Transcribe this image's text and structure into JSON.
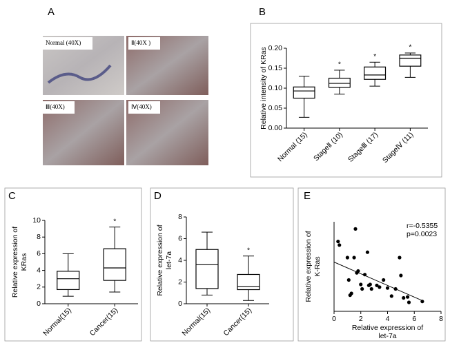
{
  "panel_a": {
    "panel_label": "A",
    "images": [
      {
        "label": "Normal (40X)"
      },
      {
        "label": "Ⅱ(40X )"
      },
      {
        "label": "Ⅲ(40X)"
      },
      {
        "label": "Ⅳ(40X)"
      }
    ]
  },
  "chart_data": [
    {
      "type": "box",
      "panel_label": "B",
      "ylabel": [
        "Relative intensity of KRas"
      ],
      "categories": [
        "Normal (15)",
        "StageⅡ (10)",
        "StageⅢ (17)",
        "StageⅣ (11)"
      ],
      "boxes": [
        {
          "min": 0.027,
          "q1": 0.075,
          "median": 0.093,
          "q3": 0.103,
          "max": 0.13
        },
        {
          "min": 0.085,
          "q1": 0.102,
          "median": 0.112,
          "q3": 0.125,
          "max": 0.145
        },
        {
          "min": 0.105,
          "q1": 0.122,
          "median": 0.133,
          "q3": 0.153,
          "max": 0.165
        },
        {
          "min": 0.127,
          "q1": 0.155,
          "median": 0.175,
          "q3": 0.183,
          "max": 0.188
        }
      ],
      "annotations": [
        null,
        "*",
        "*",
        "*"
      ],
      "ylim": [
        0,
        0.2
      ],
      "yticks": [
        {
          "value": 0,
          "label": "0.00"
        },
        {
          "value": 0.05,
          "label": "0.05"
        },
        {
          "value": 0.1,
          "label": "0.10"
        },
        {
          "value": 0.15,
          "label": "0.15"
        },
        {
          "value": 0.2,
          "label": "0.20"
        }
      ]
    },
    {
      "type": "box",
      "panel_label": "C",
      "ylabel": [
        "Relative expression of",
        "KRas"
      ],
      "categories": [
        "Normal(15)",
        "Cancer(15)"
      ],
      "boxes": [
        {
          "min": 0.9,
          "q1": 1.7,
          "median": 3.0,
          "q3": 3.9,
          "max": 6.0
        },
        {
          "min": 1.4,
          "q1": 2.8,
          "median": 4.3,
          "q3": 6.6,
          "max": 9.2
        }
      ],
      "annotations": [
        null,
        "*"
      ],
      "ylim": [
        0,
        10
      ],
      "yticks": [
        0,
        2,
        4,
        6,
        8,
        10
      ]
    },
    {
      "type": "box",
      "panel_label": "D",
      "ylabel": [
        "Relative expression of",
        "let-7a"
      ],
      "categories": [
        "Normal(15)",
        "Cancer(15)"
      ],
      "boxes": [
        {
          "min": 0.8,
          "q1": 1.4,
          "median": 3.6,
          "q3": 5.0,
          "max": 6.6
        },
        {
          "min": 0.3,
          "q1": 1.3,
          "median": 1.6,
          "q3": 2.7,
          "max": 4.4
        }
      ],
      "annotations": [
        null,
        "*"
      ],
      "ylim": [
        0,
        8
      ],
      "yticks": [
        0,
        2,
        4,
        6,
        8
      ]
    },
    {
      "type": "scatter",
      "panel_label": "E",
      "ylabel": [
        "Relative expression of",
        "K-Ras"
      ],
      "xlabel": [
        "Relative expression of",
        "let-7a"
      ],
      "x": [
        0.3,
        0.4,
        1.0,
        1.1,
        1.2,
        1.3,
        1.5,
        1.6,
        1.7,
        1.8,
        2.0,
        2.1,
        2.3,
        2.5,
        2.6,
        2.7,
        2.8,
        3.2,
        3.4,
        3.7,
        4.0,
        4.3,
        4.6,
        4.9,
        5.0,
        5.2,
        5.5,
        5.6,
        6.6
      ],
      "y": [
        7.8,
        7.4,
        6.0,
        3.5,
        1.8,
        2.0,
        6.0,
        9.2,
        4.3,
        4.5,
        3.0,
        2.5,
        4.1,
        6.6,
        2.9,
        3.0,
        2.5,
        2.9,
        2.7,
        3.5,
        2.6,
        1.7,
        2.5,
        6.0,
        4.0,
        1.5,
        1.6,
        1.0,
        1.1
      ],
      "fit": {
        "x": [
          0,
          6.6
        ],
        "y": [
          5.5,
          1.2
        ]
      },
      "annotations": [
        "r=-0.5355",
        "p=0.0023"
      ],
      "xlim": [
        0,
        8
      ],
      "xticks": [
        0,
        2,
        4,
        6,
        8
      ],
      "ylim": [
        0,
        10
      ]
    }
  ]
}
